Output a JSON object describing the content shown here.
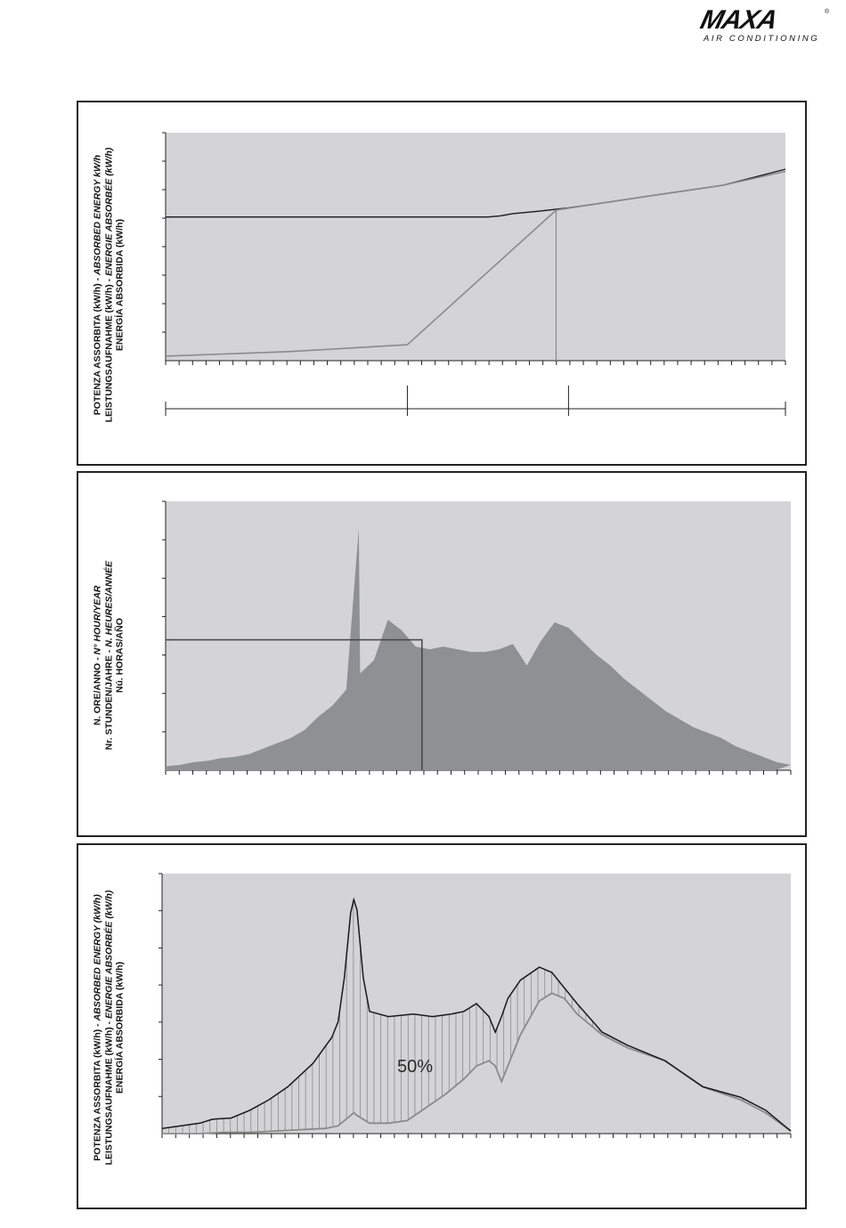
{
  "brand": {
    "name": "MAXA",
    "tagline": "AIR CONDITIONING",
    "reg": "®"
  },
  "charts": [
    {
      "type": "line",
      "ylabel_lines": [
        [
          {
            "text": "POTENZA ASSORBITA (kW/h) - ",
            "italic": false
          },
          {
            "text": "ABSORBED ENERGY kW/h",
            "italic": true
          }
        ],
        [
          {
            "text": "LEISTUNGSAUFNAHME (kW/h) - ",
            "italic": false
          },
          {
            "text": "ENERGIE ABSORBÉE (kW/h)",
            "italic": true
          }
        ],
        [
          {
            "text": "ENERGÍA ABSORBIDA (kW/h)",
            "italic": false
          }
        ]
      ],
      "y_ticks": 8,
      "x_ticks": 46,
      "series": [
        {
          "color": "#1a1a1a",
          "x": [
            0,
            0.52,
            0.54,
            0.56,
            0.6,
            0.65,
            0.7,
            0.8,
            0.9,
            1.0
          ],
          "y": [
            0.63,
            0.63,
            0.635,
            0.645,
            0.655,
            0.67,
            0.69,
            0.73,
            0.77,
            0.84
          ]
        },
        {
          "color": "#8a8a8a",
          "x": [
            0,
            0.2,
            0.39,
            0.63,
            0.7,
            0.8,
            0.9,
            1.0
          ],
          "y": [
            0.02,
            0.04,
            0.07,
            0.66,
            0.69,
            0.73,
            0.77,
            0.83
          ]
        }
      ],
      "vline_x": 0.63,
      "phase_marks": [
        0,
        0.39,
        0.65,
        1.0
      ]
    },
    {
      "type": "area",
      "ylabel_lines": [
        [
          {
            "text": "N. ORE/ANNO - ",
            "italic": false
          },
          {
            "text": "N° HOUR/YEAR",
            "italic": true
          }
        ],
        [
          {
            "text": "Nr. STUNDEN/JAHRE - ",
            "italic": false
          },
          {
            "text": "N. HEURES/ANNÉE",
            "italic": true
          }
        ],
        [
          {
            "text": "Nú. HORAS/AÑO",
            "italic": false
          }
        ]
      ],
      "y_ticks": 7,
      "x_ticks": 46,
      "color": "#8f9094",
      "values": [
        0.015,
        0.02,
        0.03,
        0.035,
        0.045,
        0.05,
        0.06,
        0.08,
        0.1,
        0.12,
        0.15,
        0.2,
        0.24,
        0.3,
        0.36,
        0.41,
        0.56,
        0.52,
        0.46,
        0.45,
        0.46,
        0.45,
        0.44,
        0.44,
        0.45,
        0.47,
        0.39,
        0.48,
        0.55,
        0.53,
        0.48,
        0.43,
        0.39,
        0.34,
        0.3,
        0.26,
        0.22,
        0.19,
        0.16,
        0.14,
        0.12,
        0.09,
        0.07,
        0.05,
        0.03,
        0.02
      ],
      "peak": {
        "x": 0.305,
        "y": 0.9
      },
      "box": {
        "x": 0.41,
        "y": 0.485
      }
    },
    {
      "type": "area",
      "annotation": "50%",
      "ylabel_lines": [
        [
          {
            "text": "POTENZA ASSORBITA (kW/h) - ",
            "italic": false
          },
          {
            "text": "ABSORBED ENERGY (kW/h)",
            "italic": true
          }
        ],
        [
          {
            "text": "LEISTUNGSAUFNAHME (kW/h) - ",
            "italic": false
          },
          {
            "text": "ENERGIE ABSORBÉE (kW/h)",
            "italic": true
          }
        ],
        [
          {
            "text": "ENERGÍA ABSORBIDA (kW/h)",
            "italic": false
          }
        ]
      ],
      "y_ticks": 7,
      "x_ticks": 46,
      "upper": {
        "x": [
          0,
          0.03,
          0.06,
          0.08,
          0.11,
          0.14,
          0.17,
          0.2,
          0.24,
          0.27,
          0.28,
          0.29,
          0.3,
          0.305,
          0.31,
          0.32,
          0.33,
          0.36,
          0.4,
          0.43,
          0.46,
          0.48,
          0.5,
          0.52,
          0.53,
          0.54,
          0.55,
          0.57,
          0.6,
          0.62,
          0.64,
          0.66,
          0.7,
          0.74,
          0.8,
          0.86,
          0.92,
          0.96,
          1.0
        ],
        "y": [
          0.02,
          0.03,
          0.04,
          0.055,
          0.06,
          0.09,
          0.13,
          0.18,
          0.27,
          0.37,
          0.43,
          0.6,
          0.85,
          0.9,
          0.86,
          0.6,
          0.47,
          0.45,
          0.46,
          0.45,
          0.46,
          0.47,
          0.5,
          0.45,
          0.39,
          0.45,
          0.52,
          0.59,
          0.64,
          0.62,
          0.56,
          0.5,
          0.39,
          0.34,
          0.28,
          0.18,
          0.14,
          0.09,
          0.01
        ]
      },
      "lower": {
        "x": [
          0,
          0.06,
          0.1,
          0.14,
          0.18,
          0.22,
          0.26,
          0.28,
          0.3,
          0.305,
          0.31,
          0.33,
          0.36,
          0.39,
          0.42,
          0.45,
          0.48,
          0.5,
          0.52,
          0.53,
          0.54,
          0.57,
          0.6,
          0.62,
          0.64,
          0.66,
          0.7,
          0.74,
          0.8,
          0.86,
          0.92,
          0.96,
          1.0
        ],
        "y": [
          0.0,
          0.0,
          0.005,
          0.005,
          0.01,
          0.015,
          0.02,
          0.03,
          0.07,
          0.08,
          0.07,
          0.04,
          0.04,
          0.05,
          0.1,
          0.15,
          0.21,
          0.26,
          0.28,
          0.26,
          0.2,
          0.38,
          0.51,
          0.54,
          0.52,
          0.46,
          0.38,
          0.33,
          0.28,
          0.18,
          0.13,
          0.08,
          0.01
        ]
      }
    }
  ]
}
